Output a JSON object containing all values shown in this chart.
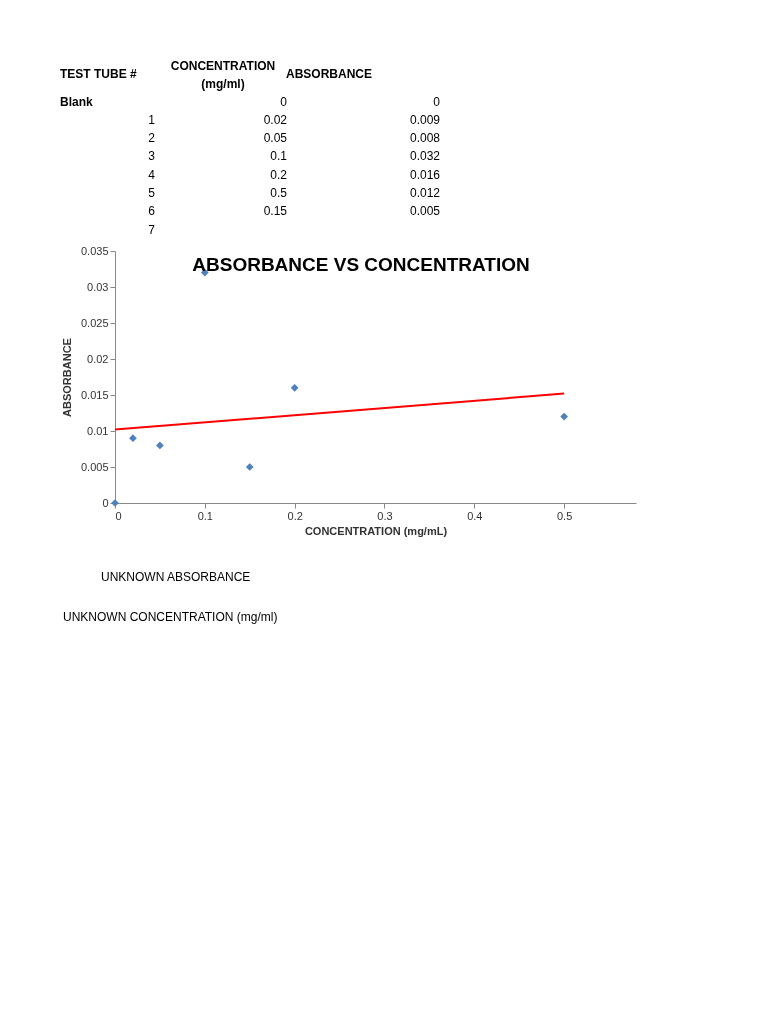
{
  "chart_data": {
    "type": "scatter",
    "title": "ABSORBANCE VS CONCENTRATION",
    "xlabel": "CONCENTRATION (mg/mL)",
    "ylabel": "ABSORBANCE",
    "x": [
      0,
      0.02,
      0.05,
      0.1,
      0.2,
      0.5,
      0.15
    ],
    "series": [
      {
        "color": "#4f81bd",
        "marker": "diamond",
        "values": [
          0,
          0.009,
          0.008,
          0.032,
          0.016,
          0.012,
          0.005
        ]
      },
      {
        "type": "line",
        "color": "#ff0000",
        "x": [
          0,
          0.5
        ],
        "values": [
          0.0102,
          0.0152
        ],
        "line_style": "solid"
      }
    ],
    "xlim": [
      0,
      0.58
    ],
    "xticks": [
      0,
      0.1,
      0.2,
      0.3,
      0.4,
      0.5
    ],
    "ylim": [
      0,
      0.035
    ],
    "yticks": [
      0,
      0.005,
      0.01,
      0.015,
      0.02,
      0.025,
      0.03,
      0.035
    ],
    "grid": false,
    "annotations": [
      "TEST TUBE #",
      "CONCENTRATION\n(mg/ml)",
      "ABSORBANCE",
      "Blank",
      "0",
      "0",
      "1",
      "0.02",
      "0.009",
      "2",
      "0.05",
      "0.008",
      "3",
      "0.1",
      "0.032",
      "4",
      "0.2",
      "0.016",
      "5",
      "0.5",
      "0.012",
      "6",
      "0.15",
      "0.005",
      "7",
      "UNKNOWN ABSORBANCE",
      "UNKNOWN CONCENTRATION (mg/ml)"
    ]
  }
}
